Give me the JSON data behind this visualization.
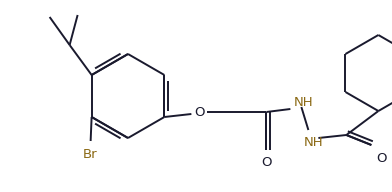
{
  "background_color": "#ffffff",
  "line_color": "#1a1a2e",
  "bond_width": 1.4,
  "figsize": [
    3.92,
    1.92
  ],
  "dpi": 100,
  "xlim": [
    0,
    392
  ],
  "ylim": [
    0,
    192
  ],
  "br_color": "#8B6914",
  "o_color": "#8B6914",
  "nh_color": "#8B6914",
  "label_fontsize": 9.5
}
